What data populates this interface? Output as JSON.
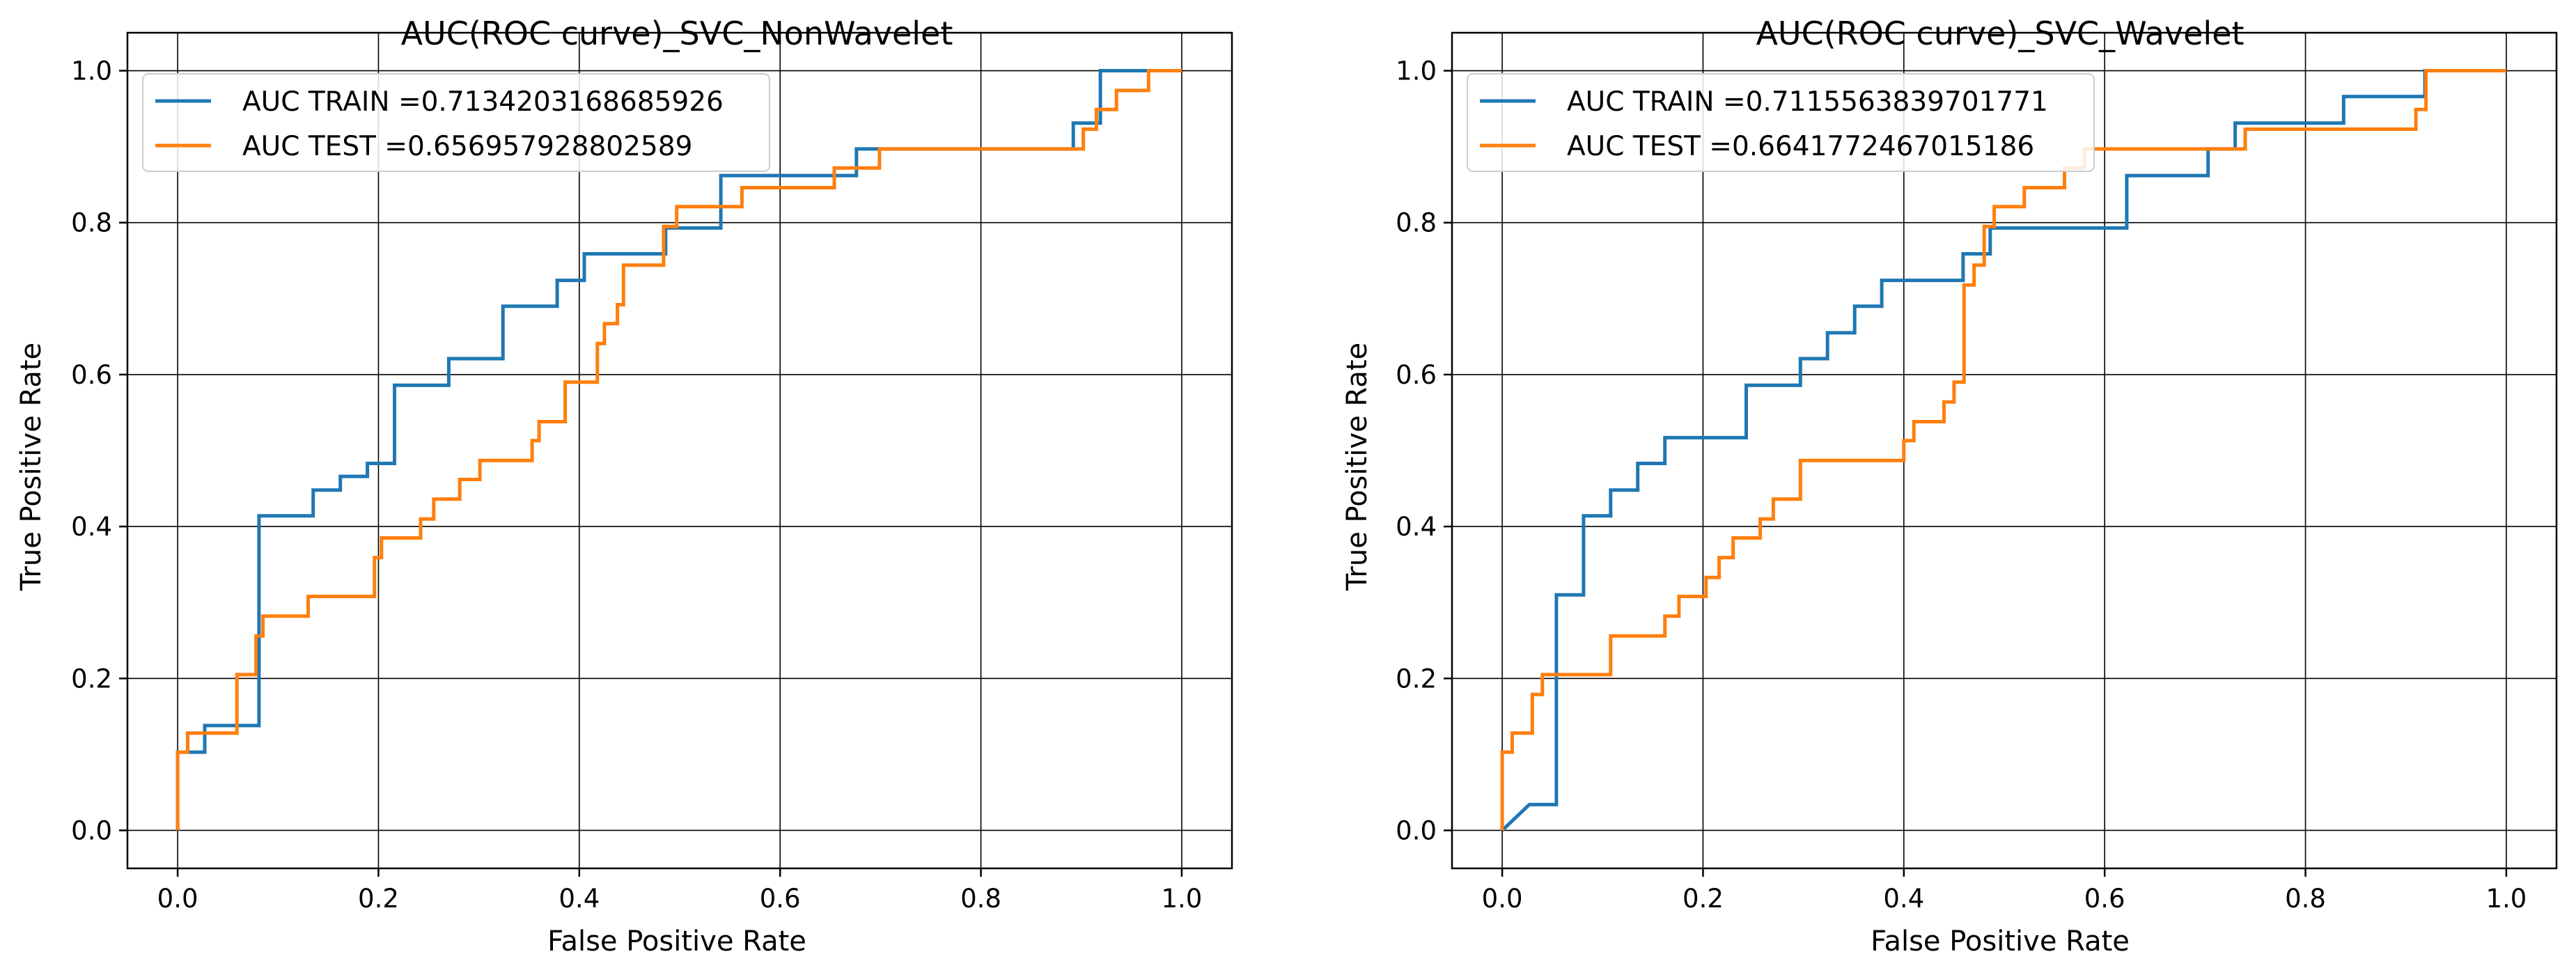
{
  "chart_data": [
    {
      "type": "line",
      "title": "AUC(ROC curve)_SVC_NonWavelet",
      "xlabel": "False Positive Rate",
      "ylabel": "True Positive Rate",
      "xlim": [
        -0.05,
        1.05
      ],
      "ylim": [
        -0.05,
        1.05
      ],
      "xticks": [
        "0.0",
        "0.2",
        "0.4",
        "0.6",
        "0.8",
        "1.0"
      ],
      "yticks": [
        "0.0",
        "0.2",
        "0.4",
        "0.6",
        "0.8",
        "1.0"
      ],
      "grid": true,
      "legend_position": "top-left",
      "series": [
        {
          "name": "AUC TRAIN =0.7134203168685926",
          "color": "#1f77b4",
          "x": [
            0,
            0,
            0.027,
            0.027,
            0.081,
            0.081,
            0.135,
            0.135,
            0.162,
            0.162,
            0.189,
            0.189,
            0.216,
            0.216,
            0.27,
            0.27,
            0.324,
            0.324,
            0.378,
            0.378,
            0.405,
            0.405,
            0.486,
            0.486,
            0.541,
            0.541,
            0.649,
            0.649,
            0.676,
            0.676,
            0.892,
            0.892,
            0.919,
            0.919,
            0.973,
            0.973,
            1.0
          ],
          "y": [
            0,
            0.103,
            0.103,
            0.138,
            0.138,
            0.414,
            0.414,
            0.448,
            0.448,
            0.466,
            0.466,
            0.483,
            0.483,
            0.586,
            0.586,
            0.621,
            0.621,
            0.69,
            0.69,
            0.724,
            0.724,
            0.759,
            0.759,
            0.793,
            0.793,
            0.862,
            0.862,
            0.862,
            0.862,
            0.897,
            0.897,
            0.931,
            0.931,
            1.0,
            1.0,
            1.0,
            1.0
          ]
        },
        {
          "name": "AUC TEST =0.656957928802589",
          "color": "#ff7f0e",
          "x": [
            0,
            0,
            0.01,
            0.01,
            0.059,
            0.059,
            0.078,
            0.078,
            0.085,
            0.085,
            0.13,
            0.13,
            0.196,
            0.196,
            0.203,
            0.203,
            0.242,
            0.242,
            0.255,
            0.255,
            0.281,
            0.281,
            0.301,
            0.301,
            0.353,
            0.353,
            0.36,
            0.36,
            0.386,
            0.386,
            0.418,
            0.418,
            0.425,
            0.425,
            0.438,
            0.438,
            0.444,
            0.444,
            0.484,
            0.484,
            0.497,
            0.497,
            0.562,
            0.562,
            0.654,
            0.654,
            0.699,
            0.699,
            0.902,
            0.902,
            0.915,
            0.915,
            0.935,
            0.935,
            0.967,
            0.967,
            1.0
          ],
          "y": [
            0,
            0.103,
            0.103,
            0.128,
            0.128,
            0.205,
            0.205,
            0.256,
            0.256,
            0.282,
            0.282,
            0.308,
            0.308,
            0.359,
            0.359,
            0.385,
            0.385,
            0.41,
            0.41,
            0.436,
            0.436,
            0.462,
            0.462,
            0.487,
            0.487,
            0.513,
            0.513,
            0.538,
            0.538,
            0.59,
            0.59,
            0.641,
            0.641,
            0.667,
            0.667,
            0.692,
            0.692,
            0.744,
            0.744,
            0.795,
            0.795,
            0.821,
            0.821,
            0.846,
            0.846,
            0.872,
            0.872,
            0.897,
            0.897,
            0.923,
            0.923,
            0.949,
            0.949,
            0.974,
            0.974,
            1.0,
            1.0
          ]
        }
      ]
    },
    {
      "type": "line",
      "title": "AUC(ROC curve)_SVC_Wavelet",
      "xlabel": "False Positive Rate",
      "ylabel": "True Positive Rate",
      "xlim": [
        -0.05,
        1.05
      ],
      "ylim": [
        -0.05,
        1.05
      ],
      "xticks": [
        "0.0",
        "0.2",
        "0.4",
        "0.6",
        "0.8",
        "1.0"
      ],
      "yticks": [
        "0.0",
        "0.2",
        "0.4",
        "0.6",
        "0.8",
        "1.0"
      ],
      "grid": true,
      "legend_position": "top-left",
      "series": [
        {
          "name": "AUC TRAIN =0.7115563839701771",
          "color": "#1f77b4",
          "x": [
            0,
            0.027,
            0.054,
            0.054,
            0.081,
            0.081,
            0.108,
            0.108,
            0.135,
            0.135,
            0.162,
            0.162,
            0.243,
            0.243,
            0.297,
            0.297,
            0.324,
            0.324,
            0.351,
            0.351,
            0.378,
            0.378,
            0.459,
            0.459,
            0.486,
            0.486,
            0.514,
            0.514,
            0.622,
            0.622,
            0.703,
            0.703,
            0.73,
            0.73,
            0.838,
            0.838,
            0.919,
            0.919,
            1.0
          ],
          "y": [
            0,
            0.034,
            0.034,
            0.31,
            0.31,
            0.414,
            0.414,
            0.448,
            0.448,
            0.483,
            0.483,
            0.517,
            0.517,
            0.586,
            0.586,
            0.621,
            0.621,
            0.655,
            0.655,
            0.69,
            0.69,
            0.724,
            0.724,
            0.759,
            0.759,
            0.793,
            0.793,
            0.793,
            0.793,
            0.862,
            0.862,
            0.897,
            0.897,
            0.931,
            0.931,
            0.966,
            0.966,
            1.0,
            1.0
          ]
        },
        {
          "name": "AUC TEST =0.6641772467015186",
          "color": "#ff7f0e",
          "x": [
            0,
            0,
            0.01,
            0.01,
            0.03,
            0.03,
            0.04,
            0.04,
            0.108,
            0.108,
            0.162,
            0.162,
            0.176,
            0.176,
            0.203,
            0.203,
            0.216,
            0.216,
            0.23,
            0.23,
            0.257,
            0.257,
            0.27,
            0.27,
            0.297,
            0.297,
            0.4,
            0.4,
            0.41,
            0.41,
            0.44,
            0.44,
            0.45,
            0.45,
            0.46,
            0.46,
            0.47,
            0.47,
            0.48,
            0.48,
            0.49,
            0.49,
            0.52,
            0.52,
            0.56,
            0.56,
            0.58,
            0.58,
            0.74,
            0.74,
            0.91,
            0.91,
            0.92,
            0.92,
            1.0
          ],
          "y": [
            0,
            0.103,
            0.103,
            0.128,
            0.128,
            0.179,
            0.179,
            0.205,
            0.205,
            0.256,
            0.256,
            0.282,
            0.282,
            0.308,
            0.308,
            0.333,
            0.333,
            0.359,
            0.359,
            0.385,
            0.385,
            0.41,
            0.41,
            0.436,
            0.436,
            0.487,
            0.487,
            0.513,
            0.513,
            0.538,
            0.538,
            0.564,
            0.564,
            0.59,
            0.59,
            0.718,
            0.718,
            0.744,
            0.744,
            0.795,
            0.795,
            0.821,
            0.821,
            0.846,
            0.846,
            0.872,
            0.872,
            0.897,
            0.897,
            0.923,
            0.923,
            0.949,
            0.949,
            1.0,
            1.0
          ]
        }
      ]
    }
  ]
}
